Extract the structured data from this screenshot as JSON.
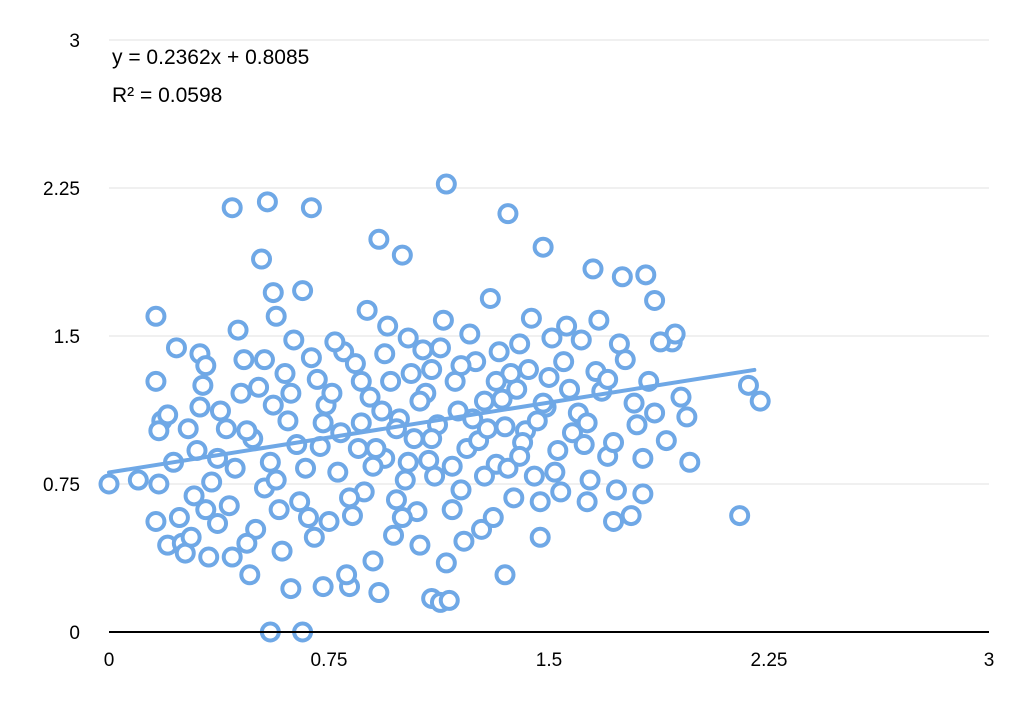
{
  "chart_data": {
    "type": "scatter",
    "title": "",
    "xlabel": "",
    "ylabel": "",
    "xlim": [
      0,
      3
    ],
    "ylim": [
      0,
      3
    ],
    "x_ticks": [
      "0",
      "0.75",
      "1.5",
      "2.25",
      "3"
    ],
    "y_ticks": [
      "0",
      "0.75",
      "1.5",
      "2.25",
      "3"
    ],
    "grid": "horizontal",
    "legend": "none",
    "marker": "hollow-circle",
    "series_color": "#6fa8e6",
    "trendline": {
      "type": "linear",
      "slope": 0.2362,
      "intercept": 0.8085,
      "x_range": [
        0,
        2.2
      ],
      "color": "#6fa8e6",
      "equation": "y = 0.2362x + 0.8085",
      "r_squared": "R² = 0.0598"
    },
    "series": [
      {
        "points": [
          [
            0.0,
            0.75
          ],
          [
            0.1,
            0.77
          ],
          [
            0.17,
            0.75
          ],
          [
            0.16,
            1.6
          ],
          [
            0.16,
            1.27
          ],
          [
            0.18,
            1.07
          ],
          [
            0.17,
            1.02
          ],
          [
            0.2,
            1.1
          ],
          [
            0.2,
            0.44
          ],
          [
            0.23,
            1.44
          ],
          [
            0.25,
            0.45
          ],
          [
            0.26,
            0.4
          ],
          [
            0.16,
            0.56
          ],
          [
            0.31,
            1.14
          ],
          [
            0.31,
            1.41
          ],
          [
            0.33,
            1.35
          ],
          [
            0.34,
            0.38
          ],
          [
            0.37,
            0.55
          ],
          [
            0.42,
            0.38
          ],
          [
            0.42,
            2.15
          ],
          [
            0.44,
            1.53
          ],
          [
            0.48,
            0.29
          ],
          [
            0.52,
            1.89
          ],
          [
            0.54,
            2.18
          ],
          [
            0.56,
            1.72
          ],
          [
            0.55,
            0.0
          ],
          [
            0.57,
            1.6
          ],
          [
            0.62,
            0.22
          ],
          [
            0.66,
            0.0
          ],
          [
            0.66,
            1.73
          ],
          [
            0.69,
            2.15
          ],
          [
            0.73,
            0.23
          ],
          [
            0.82,
            0.23
          ],
          [
            0.92,
            0.2
          ],
          [
            0.92,
            1.99
          ],
          [
            1.0,
            1.91
          ],
          [
            1.1,
            0.17
          ],
          [
            1.13,
            0.15
          ],
          [
            1.16,
            0.16
          ],
          [
            1.15,
            2.27
          ],
          [
            1.36,
            2.12
          ],
          [
            1.35,
            0.29
          ],
          [
            1.47,
            0.48
          ],
          [
            1.48,
            1.95
          ],
          [
            1.63,
            0.66
          ],
          [
            1.72,
            0.56
          ],
          [
            1.65,
            1.84
          ],
          [
            1.75,
            1.8
          ],
          [
            1.83,
            1.81
          ],
          [
            1.86,
            1.68
          ],
          [
            1.92,
            1.47
          ],
          [
            1.93,
            1.51
          ],
          [
            1.95,
            1.19
          ],
          [
            1.97,
            1.09
          ],
          [
            1.98,
            0.86
          ],
          [
            2.15,
            0.59
          ],
          [
            2.18,
            1.25
          ],
          [
            2.22,
            1.17
          ],
          [
            1.9,
            0.97
          ],
          [
            1.82,
            0.7
          ],
          [
            1.78,
            0.59
          ],
          [
            0.29,
            0.69
          ],
          [
            0.3,
            0.92
          ],
          [
            0.35,
            0.76
          ],
          [
            0.4,
            1.03
          ],
          [
            0.45,
            1.21
          ],
          [
            0.5,
            0.52
          ],
          [
            0.58,
            0.62
          ],
          [
            0.6,
            1.31
          ],
          [
            0.64,
            0.95
          ],
          [
            0.7,
            0.48
          ],
          [
            0.74,
            1.15
          ],
          [
            0.78,
            0.81
          ],
          [
            0.8,
            1.42
          ],
          [
            0.83,
            0.59
          ],
          [
            0.86,
            1.06
          ],
          [
            0.88,
            1.63
          ],
          [
            0.9,
            0.36
          ],
          [
            0.94,
            0.88
          ],
          [
            0.96,
            1.27
          ],
          [
            0.98,
            0.67
          ],
          [
            1.02,
            1.49
          ],
          [
            1.04,
            0.98
          ],
          [
            1.06,
            0.44
          ],
          [
            1.08,
            1.21
          ],
          [
            1.11,
            0.79
          ],
          [
            1.14,
            1.58
          ],
          [
            1.17,
            0.62
          ],
          [
            1.19,
            1.12
          ],
          [
            1.22,
            0.93
          ],
          [
            1.25,
            1.37
          ],
          [
            1.27,
            0.52
          ],
          [
            1.3,
            1.69
          ],
          [
            1.32,
            0.85
          ],
          [
            1.34,
            1.18
          ],
          [
            1.38,
            0.68
          ],
          [
            1.4,
            1.46
          ],
          [
            1.42,
            1.02
          ],
          [
            1.45,
            0.79
          ],
          [
            1.5,
            1.29
          ],
          [
            1.53,
            0.92
          ],
          [
            1.56,
            1.55
          ],
          [
            1.6,
            1.11
          ],
          [
            1.66,
            1.32
          ],
          [
            1.7,
            0.89
          ],
          [
            1.74,
            1.46
          ],
          [
            1.8,
            1.05
          ],
          [
            1.84,
            1.27
          ],
          [
            1.88,
            1.47
          ],
          [
            0.24,
            0.58
          ],
          [
            0.27,
            1.03
          ],
          [
            0.32,
            1.25
          ],
          [
            0.37,
            0.88
          ],
          [
            0.41,
            0.64
          ],
          [
            0.46,
            1.38
          ],
          [
            0.49,
            0.98
          ],
          [
            0.53,
            0.73
          ],
          [
            0.56,
            1.15
          ],
          [
            0.59,
            0.41
          ],
          [
            0.63,
            1.48
          ],
          [
            0.67,
            0.83
          ],
          [
            0.71,
            1.28
          ],
          [
            0.75,
            0.56
          ],
          [
            0.79,
            1.01
          ],
          [
            0.81,
            0.29
          ],
          [
            0.84,
            1.36
          ],
          [
            0.87,
            0.71
          ],
          [
            0.89,
            1.19
          ],
          [
            0.91,
            0.93
          ],
          [
            0.95,
            1.55
          ],
          [
            0.97,
            0.49
          ],
          [
            0.99,
            1.08
          ],
          [
            1.01,
            0.77
          ],
          [
            1.03,
            1.31
          ],
          [
            1.05,
            0.61
          ],
          [
            1.07,
            1.43
          ],
          [
            1.09,
            0.87
          ],
          [
            1.12,
            1.05
          ],
          [
            1.15,
            0.35
          ],
          [
            1.18,
            1.27
          ],
          [
            1.2,
            0.72
          ],
          [
            1.23,
            1.51
          ],
          [
            1.26,
            0.97
          ],
          [
            1.28,
            1.17
          ],
          [
            1.31,
            0.58
          ],
          [
            1.33,
            1.42
          ],
          [
            1.36,
            0.83
          ],
          [
            1.39,
            1.23
          ],
          [
            1.41,
            0.96
          ],
          [
            1.44,
            1.59
          ],
          [
            1.47,
            0.66
          ],
          [
            1.49,
            1.14
          ],
          [
            1.52,
            0.81
          ],
          [
            1.55,
            1.37
          ],
          [
            1.58,
            1.01
          ],
          [
            1.61,
            1.48
          ],
          [
            1.64,
            0.77
          ],
          [
            1.68,
            1.22
          ],
          [
            1.72,
            0.96
          ],
          [
            1.76,
            1.38
          ],
          [
            1.79,
            1.16
          ],
          [
            1.82,
            0.88
          ],
          [
            1.86,
            1.11
          ],
          [
            0.22,
            0.86
          ],
          [
            0.28,
            0.48
          ],
          [
            0.33,
            0.62
          ],
          [
            0.38,
            1.12
          ],
          [
            0.43,
            0.83
          ],
          [
            0.47,
            0.45
          ],
          [
            0.51,
            1.24
          ],
          [
            0.55,
            0.86
          ],
          [
            0.61,
            1.07
          ],
          [
            0.65,
            0.66
          ],
          [
            0.69,
            1.39
          ],
          [
            0.72,
            0.94
          ],
          [
            0.76,
            1.21
          ],
          [
            0.85,
            0.93
          ],
          [
            0.93,
            1.12
          ],
          [
            1.0,
            0.58
          ],
          [
            1.1,
            1.33
          ],
          [
            1.21,
            0.46
          ],
          [
            1.29,
            1.03
          ],
          [
            1.37,
            1.31
          ],
          [
            1.46,
            1.07
          ],
          [
            1.54,
            0.71
          ],
          [
            1.62,
            0.95
          ],
          [
            1.7,
            1.28
          ],
          [
            0.47,
            1.02
          ],
          [
            0.53,
            1.38
          ],
          [
            0.57,
            0.77
          ],
          [
            0.62,
            1.21
          ],
          [
            0.68,
            0.58
          ],
          [
            0.73,
            1.06
          ],
          [
            0.77,
            1.47
          ],
          [
            0.82,
            0.68
          ],
          [
            0.86,
            1.27
          ],
          [
            0.9,
            0.84
          ],
          [
            0.94,
            1.41
          ],
          [
            0.98,
            1.03
          ],
          [
            1.02,
            0.86
          ],
          [
            1.06,
            1.17
          ],
          [
            1.1,
            0.98
          ],
          [
            1.13,
            1.44
          ],
          [
            1.17,
            0.84
          ],
          [
            1.2,
            1.35
          ],
          [
            1.24,
            1.08
          ],
          [
            1.28,
            0.79
          ],
          [
            1.32,
            1.27
          ],
          [
            1.35,
            1.04
          ],
          [
            1.4,
            0.89
          ],
          [
            1.43,
            1.33
          ],
          [
            1.48,
            1.16
          ],
          [
            1.51,
            1.49
          ],
          [
            1.57,
            1.23
          ],
          [
            1.63,
            1.06
          ],
          [
            1.67,
            1.58
          ],
          [
            1.73,
            0.72
          ]
        ]
      }
    ]
  }
}
